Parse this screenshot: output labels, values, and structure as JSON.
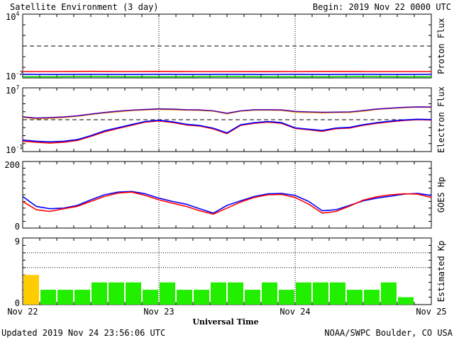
{
  "header": {
    "title": "Satellite Environment (3 day)",
    "begin": "Begin:  2019 Nov 22 0000 UTC"
  },
  "footer": {
    "updated": "Updated 2019 Nov 24 23:56:06 UTC",
    "source": "NOAA/SWPC Boulder, CO USA"
  },
  "colors": {
    "red": "#ff0000",
    "blue": "#0000ff",
    "green": "#00dd00",
    "orange": "#ffaa00",
    "purple": "#5500aa",
    "kp_green": "#22ee00",
    "kp_yellow": "#ffcc00"
  },
  "chart_data": [
    {
      "type": "line",
      "ylabel": "Proton Flux",
      "yscale": "log",
      "ylim": [
        0.01,
        10000
      ],
      "yticks": [
        {
          "base": "10",
          "exp": "4"
        },
        {
          "base": "10",
          "exp": "-2"
        }
      ],
      "threshold": 10,
      "x": [
        0,
        0.25,
        0.5,
        0.75,
        1,
        1.25,
        1.5,
        1.75,
        2,
        2.25,
        2.5,
        2.75,
        3
      ],
      "series": [
        {
          "color": "red",
          "values": [
            0.04,
            0.04,
            0.042,
            0.04,
            0.041,
            0.04,
            0.04,
            0.039,
            0.04,
            0.041,
            0.04,
            0.04,
            0.04
          ]
        },
        {
          "color": "blue",
          "values": [
            0.022,
            0.021,
            0.022,
            0.021,
            0.022,
            0.021,
            0.022,
            0.021,
            0.022,
            0.021,
            0.022,
            0.021,
            0.022
          ]
        },
        {
          "color": "green",
          "values": [
            0.013,
            0.013,
            0.014,
            0.013,
            0.013,
            0.013,
            0.014,
            0.013,
            0.013,
            0.013,
            0.014,
            0.013,
            0.013
          ]
        }
      ]
    },
    {
      "type": "line",
      "ylabel": "Electron Flux",
      "yscale": "log",
      "ylim": [
        0.1,
        10000000
      ],
      "yticks": [
        {
          "base": "10",
          "exp": "7"
        },
        {
          "base": "10",
          "exp": "-1"
        }
      ],
      "threshold": 1000,
      "x": [
        0,
        0.1,
        0.2,
        0.3,
        0.4,
        0.5,
        0.6,
        0.7,
        0.8,
        0.9,
        1.0,
        1.1,
        1.2,
        1.3,
        1.4,
        1.5,
        1.6,
        1.7,
        1.8,
        1.9,
        2.0,
        2.1,
        2.2,
        2.3,
        2.4,
        2.5,
        2.6,
        2.7,
        2.8,
        2.9,
        3.0
      ],
      "series": [
        {
          "color": "orange",
          "values": [
            2000,
            1300,
            1500,
            1900,
            2700,
            4500,
            7000,
            10000,
            14000,
            17000,
            20000,
            18000,
            16000,
            15000,
            12000,
            5500,
            12000,
            16000,
            16000,
            15000,
            9000,
            8000,
            7000,
            8000,
            8000,
            12000,
            20000,
            26000,
            32000,
            38000,
            35000
          ]
        },
        {
          "color": "purple",
          "values": [
            2300,
            1600,
            1800,
            2200,
            3000,
            5000,
            8000,
            12000,
            16000,
            19000,
            23000,
            21000,
            18000,
            17000,
            13000,
            6500,
            13000,
            18000,
            18000,
            17000,
            11000,
            9500,
            8500,
            9000,
            9500,
            14000,
            22000,
            28000,
            35000,
            41000,
            39000
          ]
        },
        {
          "color": "red",
          "values": [
            2,
            1.5,
            1.2,
            1.5,
            2.5,
            8,
            30,
            80,
            200,
            500,
            700,
            450,
            220,
            160,
            70,
            18,
            200,
            350,
            500,
            350,
            80,
            55,
            35,
            75,
            90,
            200,
            350,
            550,
            800,
            1000,
            900
          ]
        },
        {
          "color": "blue",
          "values": [
            2.8,
            2,
            1.7,
            2,
            3.2,
            10,
            40,
            100,
            250,
            600,
            850,
            550,
            270,
            190,
            85,
            22,
            230,
            420,
            600,
            430,
            95,
            65,
            45,
            90,
            110,
            240,
            420,
            650,
            950,
            1150,
            1050
          ]
        }
      ]
    },
    {
      "type": "line",
      "ylabel": "GOES Hp",
      "ylim": [
        0,
        200
      ],
      "yticks": [
        200,
        0
      ],
      "x": [
        0,
        0.1,
        0.2,
        0.3,
        0.4,
        0.5,
        0.6,
        0.7,
        0.8,
        0.9,
        1.0,
        1.1,
        1.2,
        1.3,
        1.4,
        1.5,
        1.6,
        1.7,
        1.8,
        1.9,
        2.0,
        2.1,
        2.2,
        2.3,
        2.4,
        2.5,
        2.6,
        2.7,
        2.8,
        2.9,
        3.0
      ],
      "series": [
        {
          "color": "blue",
          "values": [
            95,
            65,
            58,
            60,
            68,
            85,
            100,
            108,
            110,
            103,
            90,
            80,
            72,
            58,
            45,
            68,
            82,
            95,
            103,
            104,
            98,
            80,
            52,
            55,
            68,
            82,
            90,
            96,
            102,
            104,
            98
          ]
        },
        {
          "color": "red",
          "values": [
            80,
            55,
            50,
            58,
            65,
            80,
            95,
            105,
            108,
            98,
            85,
            75,
            65,
            52,
            42,
            60,
            78,
            92,
            100,
            101,
            92,
            72,
            45,
            50,
            66,
            84,
            94,
            100,
            103,
            102,
            92
          ]
        }
      ]
    },
    {
      "type": "bar",
      "ylabel": "Estimated Kp",
      "ylim": [
        0,
        9
      ],
      "yticks": [
        9,
        0
      ],
      "interval_hours": 3,
      "values": [
        4,
        2,
        2,
        2,
        3,
        3,
        3,
        2,
        3,
        2,
        2,
        3,
        3,
        2,
        3,
        2,
        3,
        3,
        3,
        2,
        2,
        3,
        1
      ],
      "first_bar_color": "kp_yellow",
      "bar_color": "kp_green"
    }
  ],
  "x_axis": {
    "label": "Universal Time",
    "ticks": [
      {
        "value": 0,
        "label": "Nov 22"
      },
      {
        "value": 1,
        "label": "Nov 23"
      },
      {
        "value": 2,
        "label": "Nov 24"
      },
      {
        "value": 3,
        "label": "Nov 25"
      }
    ]
  }
}
